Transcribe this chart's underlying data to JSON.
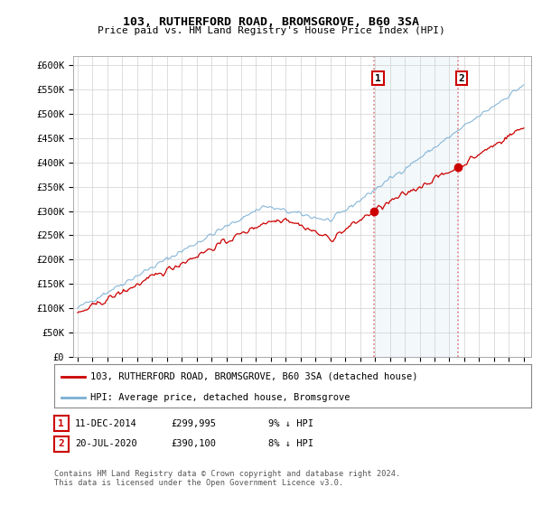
{
  "title": "103, RUTHERFORD ROAD, BROMSGROVE, B60 3SA",
  "subtitle": "Price paid vs. HM Land Registry's House Price Index (HPI)",
  "ylabel_ticks": [
    "£0",
    "£50K",
    "£100K",
    "£150K",
    "£200K",
    "£250K",
    "£300K",
    "£350K",
    "£400K",
    "£450K",
    "£500K",
    "£550K",
    "£600K"
  ],
  "ytick_vals": [
    0,
    50000,
    100000,
    150000,
    200000,
    250000,
    300000,
    350000,
    400000,
    450000,
    500000,
    550000,
    600000
  ],
  "ylim": [
    0,
    620000
  ],
  "legend_line1": "103, RUTHERFORD ROAD, BROMSGROVE, B60 3SA (detached house)",
  "legend_line2": "HPI: Average price, detached house, Bromsgrove",
  "annotation1_label": "1",
  "annotation1_date": "11-DEC-2014",
  "annotation1_price": "£299,995",
  "annotation1_hpi": "9% ↓ HPI",
  "annotation2_label": "2",
  "annotation2_date": "20-JUL-2020",
  "annotation2_price": "£390,100",
  "annotation2_hpi": "8% ↓ HPI",
  "footer": "Contains HM Land Registry data © Crown copyright and database right 2024.\nThis data is licensed under the Open Government Licence v3.0.",
  "line_color_red": "#cc0000",
  "line_color_blue": "#7aafd4",
  "annotation_box_color": "#cc0000",
  "grid_color": "#d0d0d0",
  "bg_color": "#ffffff",
  "plot_bg_color": "#ffffff",
  "shade_color": "#d0e4f0",
  "start_year": 1995,
  "end_year": 2025,
  "purchase1_year": 2014.95,
  "purchase1_price": 299995,
  "purchase2_year": 2020.55,
  "purchase2_price": 390100
}
